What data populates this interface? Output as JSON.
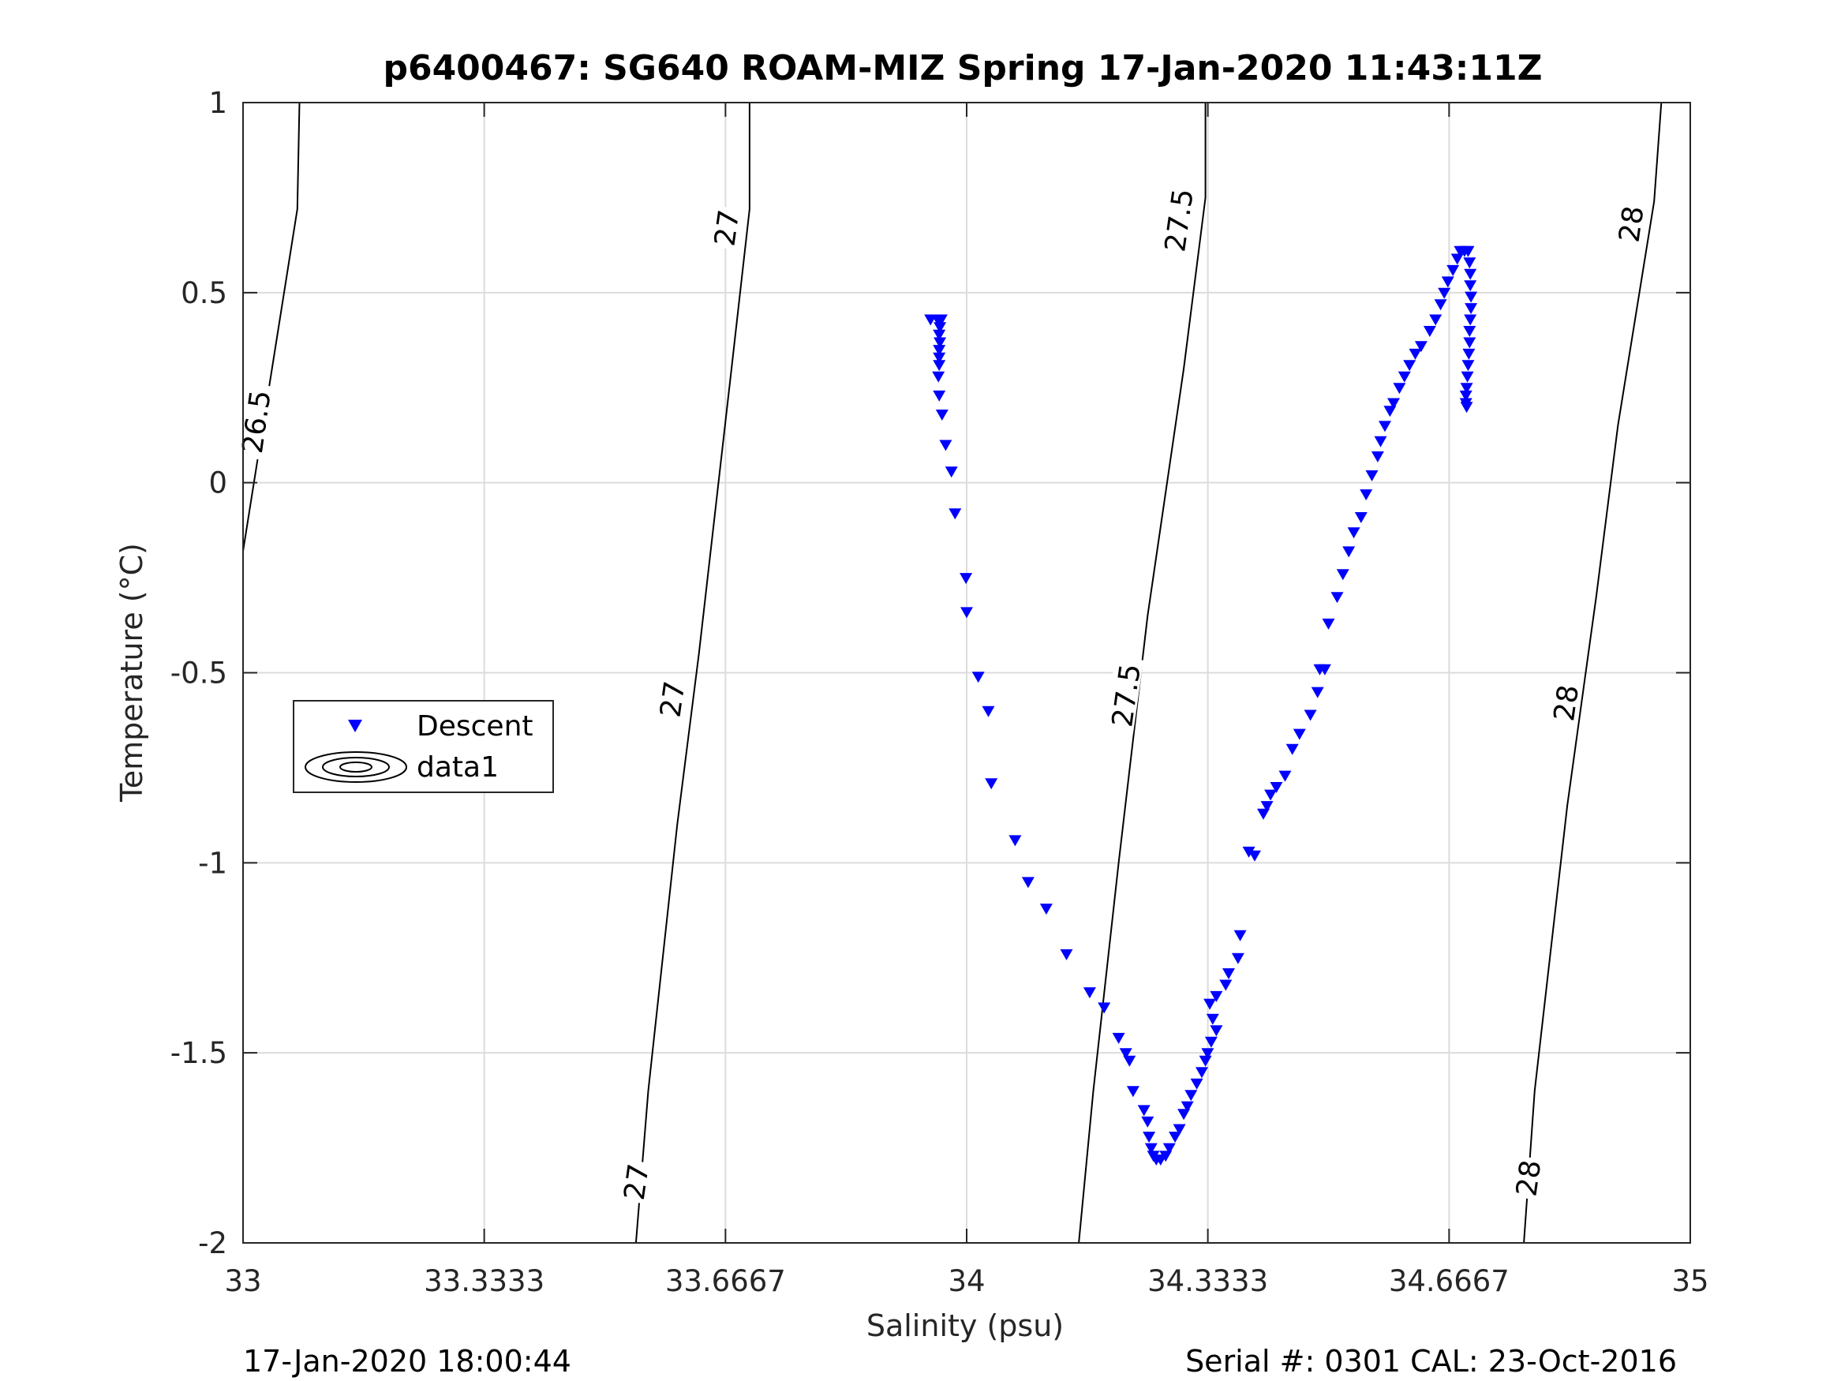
{
  "chart_data": {
    "type": "scatter",
    "title": "p6400467: SG640 ROAM-MIZ Spring 17-Jan-2020 11:43:11Z",
    "xlabel": "Salinity (psu)",
    "ylabel": "Temperature (°C)",
    "xlim": [
      33,
      35
    ],
    "ylim": [
      -2,
      1
    ],
    "xticks": [
      33,
      33.3333,
      33.6667,
      34,
      34.3333,
      34.6667,
      35
    ],
    "xtick_labels": [
      "33",
      "33.3333",
      "33.6667",
      "34",
      "34.3333",
      "34.6667",
      "35"
    ],
    "yticks": [
      -2,
      -1.5,
      -1,
      -0.5,
      0,
      0.5,
      1
    ],
    "ytick_labels": [
      "-2",
      "-1.5",
      "-1",
      "-0.5",
      "0",
      "0.5",
      "1"
    ],
    "grid": true,
    "legend": {
      "placement": "middle-left",
      "entries": [
        "Descent",
        "data1"
      ]
    },
    "series": [
      {
        "name": "Descent",
        "marker": "down-triangle",
        "color": "#0000ff",
        "points": [
          [
            33.95,
            0.43
          ],
          [
            33.96,
            0.43
          ],
          [
            33.965,
            0.43
          ],
          [
            33.963,
            0.41
          ],
          [
            33.962,
            0.39
          ],
          [
            33.963,
            0.37
          ],
          [
            33.962,
            0.35
          ],
          [
            33.962,
            0.33
          ],
          [
            33.962,
            0.31
          ],
          [
            33.961,
            0.28
          ],
          [
            33.962,
            0.23
          ],
          [
            33.966,
            0.18
          ],
          [
            33.971,
            0.1
          ],
          [
            33.979,
            0.03
          ],
          [
            33.984,
            -0.08
          ],
          [
            33.999,
            -0.25
          ],
          [
            34.0,
            -0.34
          ],
          [
            34.016,
            -0.51
          ],
          [
            34.03,
            -0.6
          ],
          [
            34.034,
            -0.79
          ],
          [
            34.067,
            -0.94
          ],
          [
            34.085,
            -1.05
          ],
          [
            34.11,
            -1.12
          ],
          [
            34.138,
            -1.24
          ],
          [
            34.17,
            -1.34
          ],
          [
            34.19,
            -1.38
          ],
          [
            34.21,
            -1.46
          ],
          [
            34.22,
            -1.5
          ],
          [
            34.225,
            -1.52
          ],
          [
            34.23,
            -1.6
          ],
          [
            34.245,
            -1.65
          ],
          [
            34.25,
            -1.68
          ],
          [
            34.252,
            -1.72
          ],
          [
            34.255,
            -1.75
          ],
          [
            34.258,
            -1.77
          ],
          [
            34.262,
            -1.78
          ],
          [
            34.268,
            -1.78
          ],
          [
            34.275,
            -1.77
          ],
          [
            34.28,
            -1.75
          ],
          [
            34.288,
            -1.72
          ],
          [
            34.294,
            -1.7
          ],
          [
            34.3,
            -1.66
          ],
          [
            34.305,
            -1.64
          ],
          [
            34.31,
            -1.61
          ],
          [
            34.318,
            -1.58
          ],
          [
            34.325,
            -1.55
          ],
          [
            34.33,
            -1.52
          ],
          [
            34.333,
            -1.5
          ],
          [
            34.338,
            -1.47
          ],
          [
            34.345,
            -1.44
          ],
          [
            34.34,
            -1.41
          ],
          [
            34.336,
            -1.37
          ],
          [
            34.345,
            -1.35
          ],
          [
            34.358,
            -1.32
          ],
          [
            34.362,
            -1.29
          ],
          [
            34.375,
            -1.25
          ],
          [
            34.378,
            -1.19
          ],
          [
            34.39,
            -0.97
          ],
          [
            34.398,
            -0.98
          ],
          [
            34.41,
            -0.87
          ],
          [
            34.415,
            -0.85
          ],
          [
            34.42,
            -0.82
          ],
          [
            34.428,
            -0.8
          ],
          [
            34.44,
            -0.77
          ],
          [
            34.45,
            -0.7
          ],
          [
            34.46,
            -0.66
          ],
          [
            34.475,
            -0.61
          ],
          [
            34.485,
            -0.55
          ],
          [
            34.488,
            -0.49
          ],
          [
            34.495,
            -0.49
          ],
          [
            34.5,
            -0.37
          ],
          [
            34.512,
            -0.3
          ],
          [
            34.52,
            -0.24
          ],
          [
            34.528,
            -0.18
          ],
          [
            34.535,
            -0.13
          ],
          [
            34.545,
            -0.09
          ],
          [
            34.552,
            -0.03
          ],
          [
            34.56,
            0.02
          ],
          [
            34.568,
            0.07
          ],
          [
            34.572,
            0.11
          ],
          [
            34.578,
            0.15
          ],
          [
            34.585,
            0.19
          ],
          [
            34.59,
            0.21
          ],
          [
            34.598,
            0.25
          ],
          [
            34.605,
            0.28
          ],
          [
            34.612,
            0.31
          ],
          [
            34.62,
            0.34
          ],
          [
            34.628,
            0.36
          ],
          [
            34.64,
            0.4
          ],
          [
            34.648,
            0.43
          ],
          [
            34.655,
            0.47
          ],
          [
            34.66,
            0.5
          ],
          [
            34.665,
            0.53
          ],
          [
            34.672,
            0.56
          ],
          [
            34.678,
            0.59
          ],
          [
            34.682,
            0.61
          ],
          [
            34.688,
            0.61
          ],
          [
            34.693,
            0.61
          ],
          [
            34.695,
            0.58
          ],
          [
            34.696,
            0.55
          ],
          [
            34.696,
            0.52
          ],
          [
            34.697,
            0.49
          ],
          [
            34.697,
            0.46
          ],
          [
            34.696,
            0.43
          ],
          [
            34.695,
            0.4
          ],
          [
            34.695,
            0.37
          ],
          [
            34.694,
            0.34
          ],
          [
            34.693,
            0.31
          ],
          [
            34.692,
            0.28
          ],
          [
            34.691,
            0.25
          ],
          [
            34.69,
            0.23
          ],
          [
            34.69,
            0.21
          ],
          [
            34.691,
            0.2
          ]
        ]
      },
      {
        "name": "data1",
        "type": "contour",
        "color": "#000000",
        "lines": [
          {
            "level": "26.5",
            "points": [
              [
                33.0,
                -0.18
              ],
              [
                33.04,
                0.3
              ],
              [
                33.075,
                0.72
              ],
              [
                33.078,
                1.0
              ]
            ]
          },
          {
            "level": "27",
            "points": [
              [
                33.543,
                -2.0
              ],
              [
                33.56,
                -1.6
              ],
              [
                33.6,
                -0.9
              ],
              [
                33.63,
                -0.45
              ],
              [
                33.675,
                0.3
              ],
              [
                33.7,
                0.72
              ],
              [
                33.7,
                1.0
              ]
            ]
          },
          {
            "level": "27.5",
            "points": [
              [
                34.155,
                -2.0
              ],
              [
                34.175,
                -1.6
              ],
              [
                34.21,
                -1.0
              ],
              [
                34.25,
                -0.35
              ],
              [
                34.3,
                0.3
              ],
              [
                34.33,
                0.75
              ],
              [
                34.33,
                1.0
              ]
            ]
          },
          {
            "level": "28",
            "points": [
              [
                34.77,
                -2.0
              ],
              [
                34.785,
                -1.6
              ],
              [
                34.83,
                -0.85
              ],
              [
                34.87,
                -0.3
              ],
              [
                34.9,
                0.15
              ],
              [
                34.95,
                0.74
              ],
              [
                34.96,
                1.0
              ]
            ]
          }
        ],
        "labels": [
          {
            "text": "26.5",
            "x": 33.02,
            "y": 0.16
          },
          {
            "text": "27",
            "x": 33.67,
            "y": 0.67
          },
          {
            "text": "27",
            "x": 33.595,
            "y": -0.57
          },
          {
            "text": "27",
            "x": 33.545,
            "y": -1.84
          },
          {
            "text": "27.5",
            "x": 34.295,
            "y": 0.69
          },
          {
            "text": "27.5",
            "x": 34.222,
            "y": -0.56
          },
          {
            "text": "28",
            "x": 34.92,
            "y": 0.68
          },
          {
            "text": "28",
            "x": 34.83,
            "y": -0.58
          },
          {
            "text": "28",
            "x": 34.778,
            "y": -1.83
          }
        ]
      }
    ]
  },
  "footer": {
    "left": "17-Jan-2020 18:00:44",
    "right": "Serial #: 0301  CAL: 23-Oct-2016"
  }
}
